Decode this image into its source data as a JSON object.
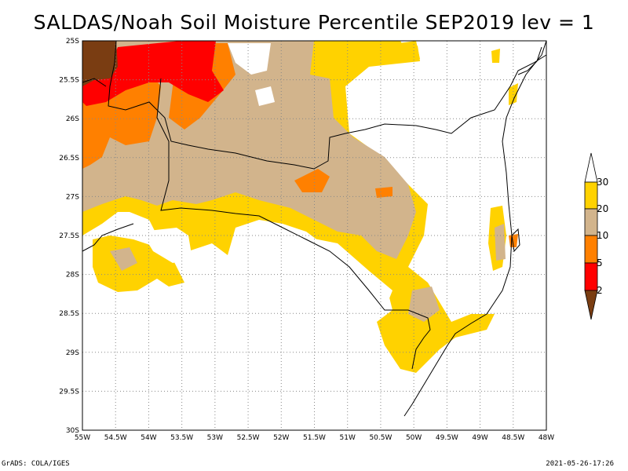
{
  "title": "SALDAS/Noah Soil Moisture Percentile SEP2019 lev = 1",
  "footer": {
    "left": "GrADS: COLA/IGES",
    "right": "2021-05-26-17:26"
  },
  "map": {
    "lat_labels": [
      "25S",
      "25.5S",
      "26S",
      "26.5S",
      "27S",
      "27.5S",
      "28S",
      "28.5S",
      "29S",
      "29.5S",
      "30S"
    ],
    "lon_labels": [
      "55W",
      "54.5W",
      "54W",
      "53.5W",
      "53W",
      "52.5W",
      "52W",
      "51.5W",
      "51W",
      "50.5W",
      "50W",
      "49.5W",
      "49W",
      "48.5W",
      "48W"
    ],
    "lat_range": [
      -30,
      -25
    ],
    "lon_range": [
      -55,
      -48
    ],
    "grid": true
  },
  "legend": {
    "labels": [
      "2",
      "5",
      "10",
      "20",
      "30"
    ],
    "colors": {
      "below_2": "#7a3d12",
      "2_5": "#ff0000",
      "5_10": "#ff8000",
      "10_20": "#d2b48c",
      "20_30": "#ffd200",
      "above_30": "#ffffff"
    }
  }
}
